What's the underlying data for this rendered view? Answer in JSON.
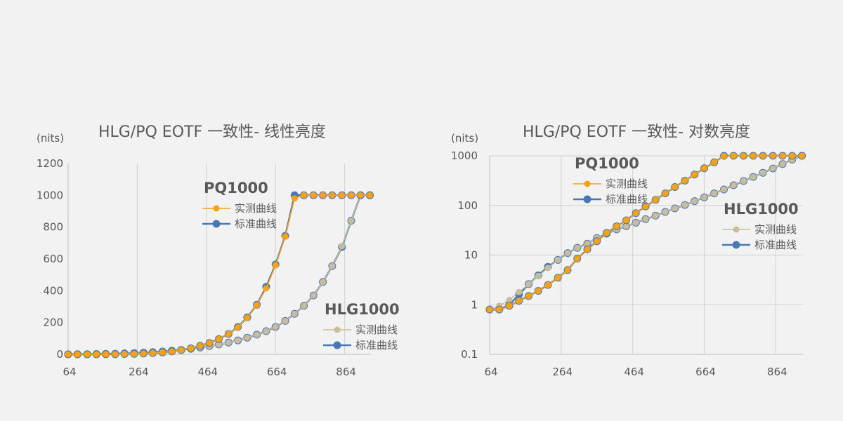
{
  "colors": {
    "pq_measured": "#f5a314",
    "standard": "#4a78b5",
    "hlg_measured": "#c9bc9c"
  },
  "legend_labels": {
    "pq": "PQ1000",
    "hlg": "HLG1000",
    "measured": "实测曲线",
    "standard": "标准曲线"
  },
  "chart_data": [
    {
      "type": "line",
      "title": "HLG/PQ EOTF 一致性- 线性亮度",
      "ylabel": "(nits)",
      "xlabel": "",
      "xlim": [
        64,
        940
      ],
      "ylim": [
        0,
        1200
      ],
      "x_ticks": [
        64,
        264,
        464,
        664,
        864
      ],
      "y_ticks": [
        0,
        200,
        400,
        600,
        800,
        1000,
        1200
      ],
      "y_scale": "linear",
      "grid": "vertical",
      "x": [
        64,
        91,
        119,
        146,
        173,
        200,
        227,
        255,
        282,
        309,
        337,
        364,
        391,
        419,
        446,
        473,
        500,
        528,
        555,
        582,
        610,
        637,
        664,
        692,
        719,
        746,
        774,
        801,
        828,
        856,
        883,
        910,
        937
      ],
      "series": [
        {
          "name": "PQ1000 实测曲线",
          "group": "PQ1000",
          "role": "measured",
          "values": [
            0,
            0,
            0,
            0,
            1,
            1,
            2,
            3,
            5,
            8,
            12,
            18,
            27,
            38,
            54,
            72,
            96,
            128,
            170,
            230,
            310,
            415,
            560,
            740,
            980,
            1000,
            1000,
            1000,
            1000,
            1000,
            1000,
            1000,
            1000
          ]
        },
        {
          "name": "PQ1000 标准曲线",
          "group": "PQ1000",
          "role": "standard",
          "values": [
            0,
            0,
            0,
            0,
            1,
            1,
            2,
            3,
            5,
            8,
            12,
            18,
            27,
            38,
            54,
            72,
            96,
            128,
            172,
            232,
            312,
            425,
            565,
            745,
            1000,
            1000,
            1000,
            1000,
            1000,
            1000,
            1000,
            1000,
            1000
          ]
        },
        {
          "name": "HLG1000 实测曲线",
          "group": "HLG1000",
          "role": "measured",
          "values": [
            0,
            1,
            1,
            2,
            3,
            4,
            6,
            8,
            11,
            14,
            18,
            23,
            28,
            35,
            43,
            52,
            62,
            74,
            88,
            105,
            124,
            146,
            172,
            210,
            255,
            305,
            370,
            455,
            555,
            680,
            840,
            1000,
            1000
          ]
        },
        {
          "name": "HLG1000 标准曲线",
          "group": "HLG1000",
          "role": "standard",
          "values": [
            0,
            1,
            1,
            2,
            3,
            4,
            6,
            8,
            11,
            14,
            18,
            23,
            28,
            35,
            43,
            52,
            62,
            74,
            88,
            105,
            124,
            146,
            172,
            210,
            255,
            305,
            370,
            455,
            555,
            675,
            840,
            1000,
            1000
          ]
        }
      ]
    },
    {
      "type": "line",
      "title": "HLG/PQ EOTF 一致性- 对数亮度",
      "ylabel": "(nits)",
      "xlabel": "",
      "xlim": [
        64,
        940
      ],
      "ylim": [
        0.1,
        1000
      ],
      "x_ticks": [
        64,
        264,
        464,
        664,
        864
      ],
      "y_ticks": [
        0.1,
        1,
        10,
        100,
        1000
      ],
      "y_scale": "log",
      "grid": "both",
      "x": [
        64,
        91,
        119,
        146,
        173,
        200,
        227,
        255,
        282,
        309,
        337,
        364,
        391,
        419,
        446,
        473,
        500,
        528,
        555,
        582,
        610,
        637,
        664,
        692,
        719,
        746,
        774,
        801,
        828,
        856,
        883,
        910,
        937
      ],
      "series": [
        {
          "name": "PQ1000 实测曲线",
          "group": "PQ1000",
          "role": "measured",
          "values": [
            0.8,
            0.8,
            0.95,
            1.2,
            1.5,
            1.9,
            2.5,
            3.5,
            5.0,
            8.5,
            13,
            19,
            28,
            38,
            50,
            70,
            95,
            130,
            175,
            235,
            315,
            420,
            560,
            740,
            990,
            1000,
            1000,
            1000,
            1000,
            1000,
            1000,
            1000,
            1000
          ]
        },
        {
          "name": "PQ1000 标准曲线",
          "group": "PQ1000",
          "role": "standard",
          "values": [
            0.8,
            0.8,
            0.95,
            1.2,
            1.5,
            1.9,
            2.5,
            3.5,
            5.0,
            8.5,
            13,
            19,
            28,
            38,
            50,
            70,
            95,
            130,
            175,
            235,
            315,
            420,
            560,
            740,
            1000,
            1000,
            1000,
            1000,
            1000,
            1000,
            1000,
            1000,
            1000
          ]
        },
        {
          "name": "HLG1000 实测曲线",
          "group": "HLG1000",
          "role": "measured",
          "values": [
            0.8,
            0.95,
            1.25,
            1.8,
            2.6,
            3.8,
            5.5,
            8.0,
            11,
            14,
            17,
            22,
            27,
            33,
            38,
            45,
            53,
            62,
            74,
            87,
            102,
            122,
            145,
            175,
            210,
            255,
            310,
            375,
            455,
            555,
            680,
            840,
            1000
          ]
        },
        {
          "name": "HLG1000 标准曲线",
          "group": "HLG1000",
          "role": "standard",
          "values": [
            0.8,
            0.8,
            1.0,
            1.6,
            2.6,
            3.9,
            5.8,
            8.0,
            11,
            14,
            17,
            22,
            27,
            33,
            38,
            45,
            53,
            62,
            74,
            87,
            102,
            122,
            145,
            175,
            210,
            255,
            310,
            375,
            455,
            555,
            680,
            840,
            1000
          ]
        }
      ]
    }
  ]
}
